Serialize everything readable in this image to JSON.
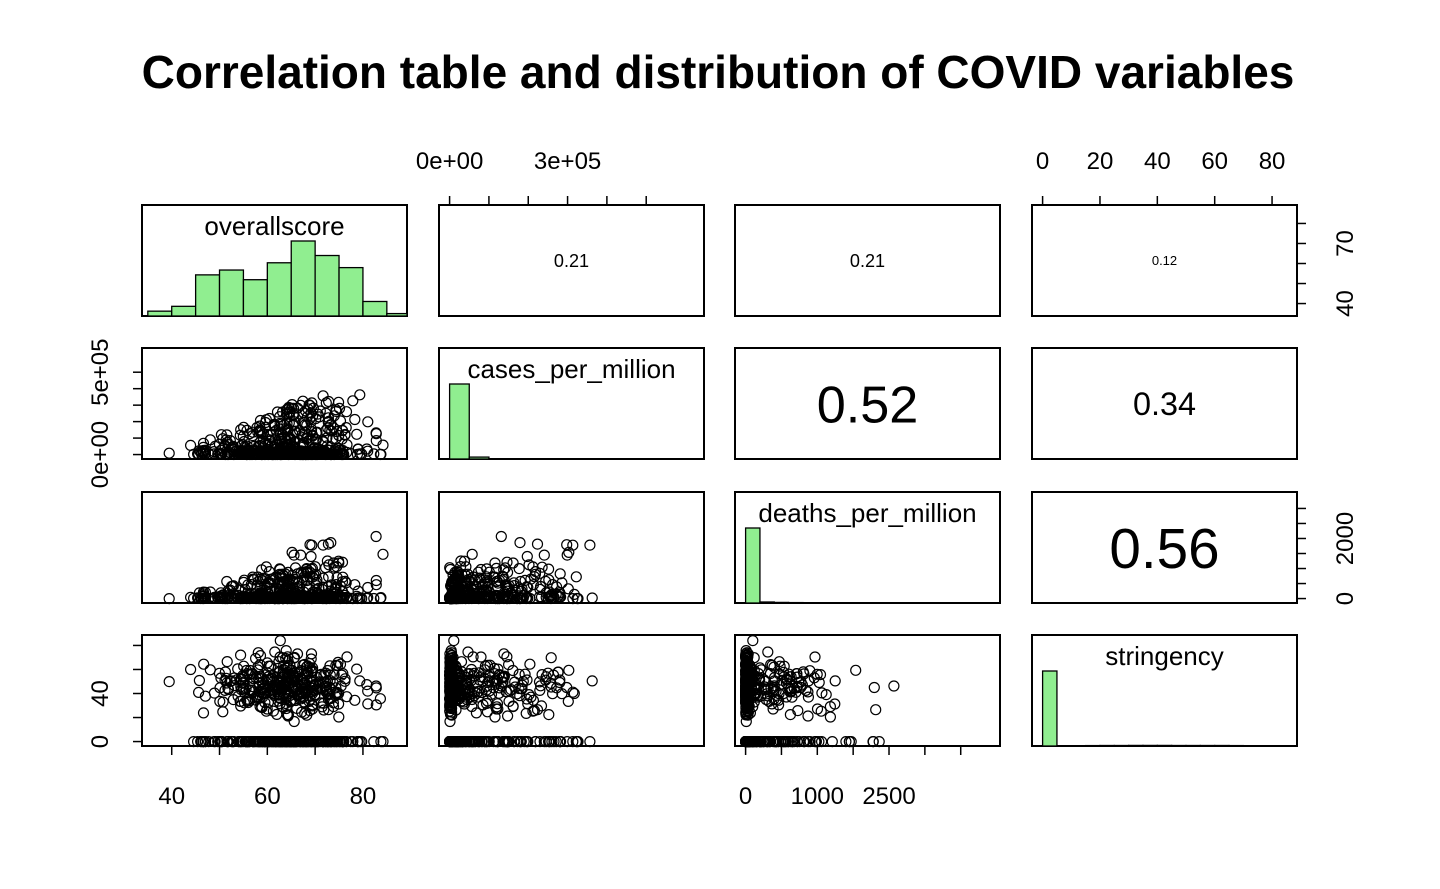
{
  "chart_data": {
    "type": "scatter",
    "subtype": "scatterplot-matrix",
    "title": "Correlation table and distribution of COVID variables",
    "variables": [
      "overallscore",
      "cases_per_million",
      "deaths_per_million",
      "stringency"
    ],
    "ranges": [
      [
        36,
        87
      ],
      [
        0,
        620000
      ],
      [
        0,
        3400
      ],
      [
        0,
        85
      ]
    ],
    "axis_ticks": {
      "top": [
        {
          "variable": 1,
          "values": [
            0,
            100000,
            200000,
            300000,
            400000,
            500000
          ],
          "labels": [
            "0e+00",
            "",
            "",
            "3e+05",
            "",
            ""
          ]
        },
        {
          "variable": 3,
          "values": [
            0,
            20,
            40,
            60,
            80
          ],
          "labels": [
            "0",
            "20",
            "40",
            "60",
            "80"
          ]
        }
      ],
      "bottom": [
        {
          "variable": 0,
          "values": [
            40,
            50,
            60,
            70,
            80
          ],
          "labels": [
            "40",
            "",
            "60",
            "",
            "80"
          ]
        },
        {
          "variable": 2,
          "values": [
            0,
            500,
            1000,
            1500,
            2000,
            2500,
            3000
          ],
          "labels": [
            "0",
            "",
            "1000",
            "",
            "2500",
            "",
            ""
          ]
        }
      ],
      "left": [
        {
          "variable": 1,
          "values": [
            0,
            100000,
            200000,
            300000,
            400000,
            500000
          ],
          "labels": [
            "0e+00",
            "",
            "",
            "",
            "",
            "5e+05"
          ]
        },
        {
          "variable": 3,
          "values": [
            0,
            20,
            40,
            60,
            80
          ],
          "labels": [
            "0",
            "",
            "40",
            "",
            ""
          ]
        }
      ],
      "right": [
        {
          "variable": 0,
          "values": [
            40,
            50,
            60,
            70,
            80
          ],
          "labels": [
            "40",
            "",
            "",
            "70",
            ""
          ]
        },
        {
          "variable": 2,
          "values": [
            0,
            500,
            1000,
            1500,
            2000,
            2500,
            3000
          ],
          "labels": [
            "0",
            "",
            "",
            "",
            "2000",
            "",
            ""
          ]
        }
      ]
    },
    "correlations": [
      {
        "row": 0,
        "col": 1,
        "value": "0.21"
      },
      {
        "row": 0,
        "col": 2,
        "value": "0.21"
      },
      {
        "row": 0,
        "col": 3,
        "value": "0.12"
      },
      {
        "row": 1,
        "col": 2,
        "value": "0.52"
      },
      {
        "row": 1,
        "col": 3,
        "value": "0.34"
      },
      {
        "row": 2,
        "col": 3,
        "value": "0.56"
      }
    ],
    "histograms": [
      {
        "variable": 0,
        "bins": [
          35,
          40,
          45,
          50,
          55,
          60,
          65,
          70,
          75,
          80,
          85,
          90
        ],
        "counts": [
          2,
          4,
          17,
          19,
          15,
          22,
          31,
          25,
          20,
          6,
          1
        ]
      },
      {
        "variable": 1,
        "bins": [
          0,
          50000,
          100000,
          150000,
          200000,
          250000,
          300000,
          350000,
          400000,
          450000,
          500000,
          550000,
          600000,
          650000
        ],
        "counts": [
          900,
          23,
          4,
          2,
          1,
          0,
          0,
          0,
          0,
          0,
          0,
          0,
          0
        ]
      },
      {
        "variable": 2,
        "bins": [
          0,
          200,
          400,
          600,
          800,
          1000,
          1200,
          1400,
          1600,
          1800,
          2000,
          2200,
          2400,
          2600,
          2800,
          3000,
          3200,
          3400
        ],
        "counts": [
          900,
          12,
          7,
          5,
          3,
          2,
          1,
          1,
          1,
          0,
          0,
          0,
          0,
          0,
          0,
          0,
          0
        ]
      },
      {
        "variable": 3,
        "bins": [
          0,
          5,
          10,
          15,
          20,
          25,
          30,
          35,
          40,
          45,
          50,
          55,
          60,
          65,
          70,
          75,
          80,
          85
        ],
        "counts": [
          900,
          0,
          4,
          5,
          6,
          6,
          7,
          7,
          7,
          6,
          6,
          6,
          6,
          5,
          4,
          0,
          0
        ]
      }
    ],
    "histogram_fill": "#90ee90",
    "point_style": "open-circle",
    "grid": false,
    "legend": "none"
  }
}
